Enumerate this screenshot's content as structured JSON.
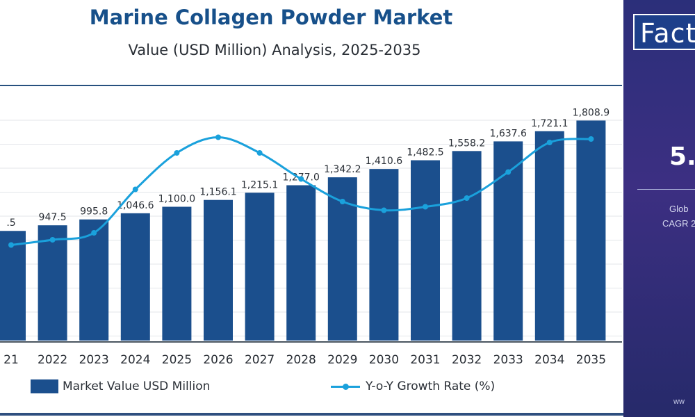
{
  "chart_data": {
    "type": "bar",
    "title": "Marine Collagen Powder Market",
    "subtitle": "Value (USD Million) Analysis, 2025-2035",
    "categories": [
      "21",
      "2022",
      "2023",
      "2024",
      "2025",
      "2026",
      "2027",
      "2028",
      "2029",
      "2030",
      "2031",
      "2032",
      "2033",
      "2034",
      "2035"
    ],
    "series": [
      {
        "name": "Market Value USD Million",
        "kind": "bar",
        "values": [
          901.5,
          947.5,
          995.8,
          1046.6,
          1100.0,
          1156.1,
          1215.1,
          1277.0,
          1342.2,
          1410.6,
          1482.5,
          1558.2,
          1637.6,
          1721.1,
          1808.9
        ],
        "labels": [
          ".5",
          "947.5",
          "995.8",
          "1,046.6",
          "1,100.0",
          "1,156.1",
          "1,215.1",
          "1,277.0",
          "1,342.2",
          "1,410.6",
          "1,482.5",
          "1,558.2",
          "1,637.6",
          "1,721.1",
          "1,808.9"
        ]
      },
      {
        "name": "Y-o-Y Growth Rate (%)",
        "kind": "line",
        "values": [
          5.05,
          5.08,
          5.12,
          5.37,
          5.58,
          5.67,
          5.58,
          5.43,
          5.3,
          5.25,
          5.27,
          5.32,
          5.47,
          5.64,
          5.66
        ]
      }
    ],
    "ylim": [
      0,
      2000
    ],
    "y2lim": [
      4.5,
      5.9
    ],
    "grid": true,
    "legend_position": "bottom",
    "colors": {
      "bar": "#1b4f8d",
      "line": "#1aa1dc"
    }
  },
  "side_panel": {
    "brand": "Fact",
    "cagr_value": "5.",
    "label_line1": "Glob",
    "label_line2": "CAGR 2",
    "url": "ww"
  }
}
